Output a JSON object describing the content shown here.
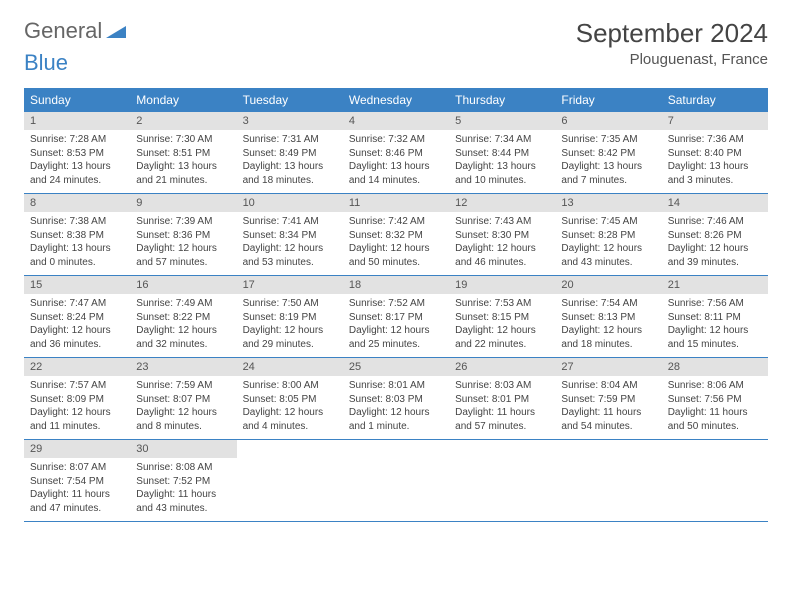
{
  "logo": {
    "part1": "General",
    "part2": "Blue"
  },
  "title": "September 2024",
  "location": "Plouguenast, France",
  "header_bg": "#3b82c4",
  "daynum_bg": "#e2e2e2",
  "day_names": [
    "Sunday",
    "Monday",
    "Tuesday",
    "Wednesday",
    "Thursday",
    "Friday",
    "Saturday"
  ],
  "weeks": [
    [
      {
        "n": "1",
        "sr": "7:28 AM",
        "ss": "8:53 PM",
        "dl": "13 hours and 24 minutes."
      },
      {
        "n": "2",
        "sr": "7:30 AM",
        "ss": "8:51 PM",
        "dl": "13 hours and 21 minutes."
      },
      {
        "n": "3",
        "sr": "7:31 AM",
        "ss": "8:49 PM",
        "dl": "13 hours and 18 minutes."
      },
      {
        "n": "4",
        "sr": "7:32 AM",
        "ss": "8:46 PM",
        "dl": "13 hours and 14 minutes."
      },
      {
        "n": "5",
        "sr": "7:34 AM",
        "ss": "8:44 PM",
        "dl": "13 hours and 10 minutes."
      },
      {
        "n": "6",
        "sr": "7:35 AM",
        "ss": "8:42 PM",
        "dl": "13 hours and 7 minutes."
      },
      {
        "n": "7",
        "sr": "7:36 AM",
        "ss": "8:40 PM",
        "dl": "13 hours and 3 minutes."
      }
    ],
    [
      {
        "n": "8",
        "sr": "7:38 AM",
        "ss": "8:38 PM",
        "dl": "13 hours and 0 minutes."
      },
      {
        "n": "9",
        "sr": "7:39 AM",
        "ss": "8:36 PM",
        "dl": "12 hours and 57 minutes."
      },
      {
        "n": "10",
        "sr": "7:41 AM",
        "ss": "8:34 PM",
        "dl": "12 hours and 53 minutes."
      },
      {
        "n": "11",
        "sr": "7:42 AM",
        "ss": "8:32 PM",
        "dl": "12 hours and 50 minutes."
      },
      {
        "n": "12",
        "sr": "7:43 AM",
        "ss": "8:30 PM",
        "dl": "12 hours and 46 minutes."
      },
      {
        "n": "13",
        "sr": "7:45 AM",
        "ss": "8:28 PM",
        "dl": "12 hours and 43 minutes."
      },
      {
        "n": "14",
        "sr": "7:46 AM",
        "ss": "8:26 PM",
        "dl": "12 hours and 39 minutes."
      }
    ],
    [
      {
        "n": "15",
        "sr": "7:47 AM",
        "ss": "8:24 PM",
        "dl": "12 hours and 36 minutes."
      },
      {
        "n": "16",
        "sr": "7:49 AM",
        "ss": "8:22 PM",
        "dl": "12 hours and 32 minutes."
      },
      {
        "n": "17",
        "sr": "7:50 AM",
        "ss": "8:19 PM",
        "dl": "12 hours and 29 minutes."
      },
      {
        "n": "18",
        "sr": "7:52 AM",
        "ss": "8:17 PM",
        "dl": "12 hours and 25 minutes."
      },
      {
        "n": "19",
        "sr": "7:53 AM",
        "ss": "8:15 PM",
        "dl": "12 hours and 22 minutes."
      },
      {
        "n": "20",
        "sr": "7:54 AM",
        "ss": "8:13 PM",
        "dl": "12 hours and 18 minutes."
      },
      {
        "n": "21",
        "sr": "7:56 AM",
        "ss": "8:11 PM",
        "dl": "12 hours and 15 minutes."
      }
    ],
    [
      {
        "n": "22",
        "sr": "7:57 AM",
        "ss": "8:09 PM",
        "dl": "12 hours and 11 minutes."
      },
      {
        "n": "23",
        "sr": "7:59 AM",
        "ss": "8:07 PM",
        "dl": "12 hours and 8 minutes."
      },
      {
        "n": "24",
        "sr": "8:00 AM",
        "ss": "8:05 PM",
        "dl": "12 hours and 4 minutes."
      },
      {
        "n": "25",
        "sr": "8:01 AM",
        "ss": "8:03 PM",
        "dl": "12 hours and 1 minute."
      },
      {
        "n": "26",
        "sr": "8:03 AM",
        "ss": "8:01 PM",
        "dl": "11 hours and 57 minutes."
      },
      {
        "n": "27",
        "sr": "8:04 AM",
        "ss": "7:59 PM",
        "dl": "11 hours and 54 minutes."
      },
      {
        "n": "28",
        "sr": "8:06 AM",
        "ss": "7:56 PM",
        "dl": "11 hours and 50 minutes."
      }
    ],
    [
      {
        "n": "29",
        "sr": "8:07 AM",
        "ss": "7:54 PM",
        "dl": "11 hours and 47 minutes."
      },
      {
        "n": "30",
        "sr": "8:08 AM",
        "ss": "7:52 PM",
        "dl": "11 hours and 43 minutes."
      },
      null,
      null,
      null,
      null,
      null
    ]
  ],
  "labels": {
    "sunrise": "Sunrise: ",
    "sunset": "Sunset: ",
    "daylight": "Daylight: "
  }
}
